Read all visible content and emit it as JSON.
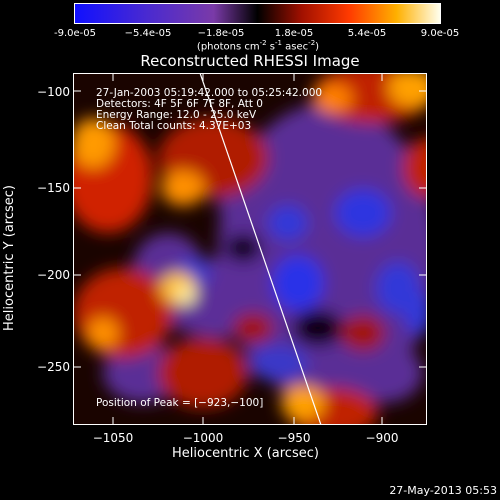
{
  "colorbar": {
    "ticks": [
      "-9.0e-05",
      "−5.4e-05",
      "−1.8e-05",
      "1.8e-05",
      "5.4e-05",
      "9.0e-05"
    ],
    "units_main": "(photons cm",
    "units_sup1": "-2",
    "units_mid": " s",
    "units_sup2": "-1",
    "units_end": " asec",
    "units_sup3": "-2",
    "units_close": ")"
  },
  "plot": {
    "title": "Reconstructed RHESSI Image",
    "xlabel": "Heliocentric X (arcsec)",
    "ylabel": "Heliocentric Y (arcsec)",
    "xticks": [
      "−1050",
      "−1000",
      "−950",
      "−900"
    ],
    "yticks": [
      "−100",
      "−150",
      "−200",
      "−250"
    ],
    "info": {
      "time": "27-Jan-2003 05:19:42.000 to 05:25:42.000",
      "detectors": "Detectors: 4F 5F 6F 7F 8F, Att 0",
      "energy": "Energy Range: 12.0 - 25.0 keV",
      "method": "Clean    Total counts: 4.37E+03"
    },
    "peak": "Position of Peak = [−923,−100]"
  },
  "footer": {
    "timestamp": "27-May-2013 05:53"
  },
  "colors": {
    "background": "#000000",
    "negative": "#2a2aff",
    "mid_negative": "#7a3aa8",
    "zero": "#000000",
    "positive": "#ff3b00",
    "high_positive": "#ffff80",
    "limb": "#ffffff"
  }
}
